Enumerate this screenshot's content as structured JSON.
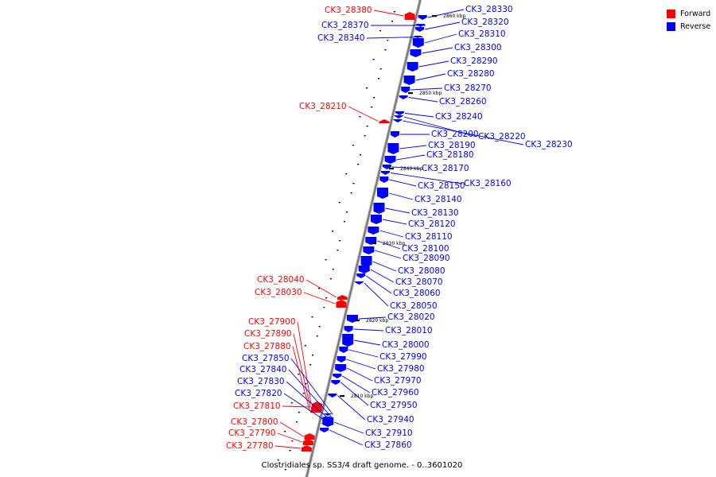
{
  "caption": "Clostridiales sp. SS3/4 draft genome. - 0..3601020",
  "legend": [
    {
      "label": "Forward",
      "color": "#ff0000"
    },
    {
      "label": "Reverse",
      "color": "#0000ff"
    }
  ],
  "colors": {
    "forward": "#ff0000",
    "reverse": "#0000ff",
    "backbone": "#777777"
  },
  "ticks": [
    "2860 kbp",
    "2850 kbp",
    "2840 kbp",
    "2830 kbp",
    "2820 kbp",
    "2810 kbp"
  ],
  "genes": [
    {
      "label": "CK3_28380",
      "strand": "forward"
    },
    {
      "label": "CK3_28370",
      "strand": "reverse"
    },
    {
      "label": "CK3_28340",
      "strand": "reverse"
    },
    {
      "label": "CK3_28330",
      "strand": "reverse"
    },
    {
      "label": "CK3_28320",
      "strand": "reverse"
    },
    {
      "label": "CK3_28310",
      "strand": "reverse"
    },
    {
      "label": "CK3_28300",
      "strand": "reverse"
    },
    {
      "label": "CK3_28290",
      "strand": "reverse"
    },
    {
      "label": "CK3_28280",
      "strand": "reverse"
    },
    {
      "label": "CK3_28270",
      "strand": "reverse"
    },
    {
      "label": "CK3_28260",
      "strand": "reverse"
    },
    {
      "label": "CK3_28210",
      "strand": "forward"
    },
    {
      "label": "CK3_28240",
      "strand": "reverse"
    },
    {
      "label": "CK3_28220",
      "strand": "reverse"
    },
    {
      "label": "CK3_28230",
      "strand": "reverse"
    },
    {
      "label": "CK3_28200",
      "strand": "reverse"
    },
    {
      "label": "CK3_28190",
      "strand": "reverse"
    },
    {
      "label": "CK3_28180",
      "strand": "reverse"
    },
    {
      "label": "CK3_28170",
      "strand": "reverse"
    },
    {
      "label": "CK3_28160",
      "strand": "reverse"
    },
    {
      "label": "CK3_28150",
      "strand": "reverse"
    },
    {
      "label": "CK3_28140",
      "strand": "reverse"
    },
    {
      "label": "CK3_28130",
      "strand": "reverse"
    },
    {
      "label": "CK3_28120",
      "strand": "reverse"
    },
    {
      "label": "CK3_28110",
      "strand": "reverse"
    },
    {
      "label": "CK3_28100",
      "strand": "reverse"
    },
    {
      "label": "CK3_28090",
      "strand": "reverse"
    },
    {
      "label": "CK3_28080",
      "strand": "reverse"
    },
    {
      "label": "CK3_28070",
      "strand": "reverse"
    },
    {
      "label": "CK3_28060",
      "strand": "reverse"
    },
    {
      "label": "CK3_28040",
      "strand": "forward"
    },
    {
      "label": "CK3_28030",
      "strand": "forward"
    },
    {
      "label": "CK3_28050",
      "strand": "reverse"
    },
    {
      "label": "CK3_28020",
      "strand": "reverse"
    },
    {
      "label": "CK3_28010",
      "strand": "reverse"
    },
    {
      "label": "CK3_28000",
      "strand": "reverse"
    },
    {
      "label": "CK3_27990",
      "strand": "reverse"
    },
    {
      "label": "CK3_27980",
      "strand": "reverse"
    },
    {
      "label": "CK3_27970",
      "strand": "reverse"
    },
    {
      "label": "CK3_27960",
      "strand": "reverse"
    },
    {
      "label": "CK3_27950",
      "strand": "reverse"
    },
    {
      "label": "CK3_27940",
      "strand": "reverse"
    },
    {
      "label": "CK3_27910",
      "strand": "reverse"
    },
    {
      "label": "CK3_27860",
      "strand": "reverse"
    },
    {
      "label": "CK3_27900",
      "strand": "forward"
    },
    {
      "label": "CK3_27890",
      "strand": "forward"
    },
    {
      "label": "CK3_27880",
      "strand": "forward"
    },
    {
      "label": "CK3_27850",
      "strand": "reverse"
    },
    {
      "label": "CK3_27840",
      "strand": "reverse"
    },
    {
      "label": "CK3_27830",
      "strand": "reverse"
    },
    {
      "label": "CK3_27820",
      "strand": "reverse"
    },
    {
      "label": "CK3_27810",
      "strand": "forward"
    },
    {
      "label": "CK3_27800",
      "strand": "forward"
    },
    {
      "label": "CK3_27790",
      "strand": "forward"
    },
    {
      "label": "CK3_27780",
      "strand": "forward"
    }
  ]
}
